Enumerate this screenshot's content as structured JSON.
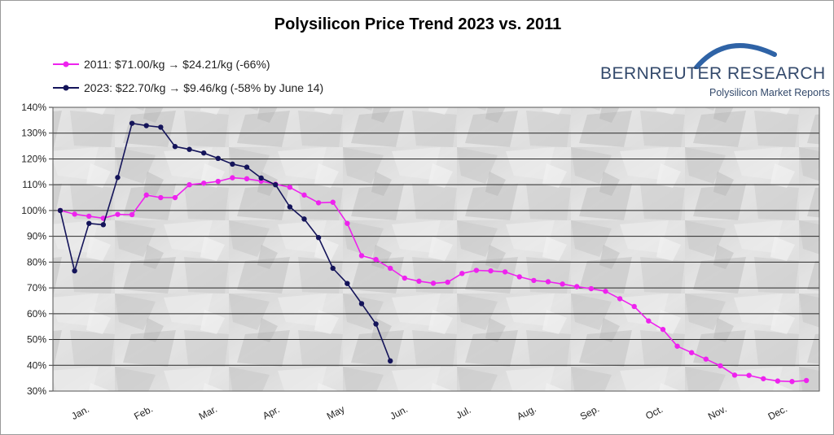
{
  "chart_data": {
    "type": "line",
    "title": "Polysilicon Price Trend 2023 vs. 2011",
    "xlabel": "",
    "ylabel": "",
    "x_unit": "week of year",
    "xlim": [
      1,
      52
    ],
    "ylim": [
      30,
      140
    ],
    "yticks": [
      30,
      40,
      50,
      60,
      70,
      80,
      90,
      100,
      110,
      120,
      130,
      140
    ],
    "ytick_labels": [
      "30%",
      "40%",
      "50%",
      "60%",
      "70%",
      "80%",
      "90%",
      "100%",
      "110%",
      "120%",
      "130%",
      "140%"
    ],
    "month_labels": [
      {
        "label": "Jan.",
        "x": 2.5
      },
      {
        "label": "Feb.",
        "x": 6.9
      },
      {
        "label": "Mar.",
        "x": 11.4
      },
      {
        "label": "Apr.",
        "x": 15.8
      },
      {
        "label": "May",
        "x": 20.3
      },
      {
        "label": "Jun.",
        "x": 24.7
      },
      {
        "label": "Jul.",
        "x": 29.2
      },
      {
        "label": "Aug.",
        "x": 33.6
      },
      {
        "label": "Sep.",
        "x": 38.0
      },
      {
        "label": "Oct.",
        "x": 42.5
      },
      {
        "label": "Nov.",
        "x": 46.9
      },
      {
        "label": "Dec.",
        "x": 51.1
      }
    ],
    "grid": true,
    "legend_position": "top-left",
    "series": [
      {
        "name": "2011: $71.00/kg → $24.21/kg (-66%)",
        "color": "#ee22ee",
        "points": [
          [
            1,
            100
          ],
          [
            2,
            98.6
          ],
          [
            3,
            97.8
          ],
          [
            4,
            97
          ],
          [
            5,
            98.5
          ],
          [
            6,
            98.4
          ],
          [
            7,
            106
          ],
          [
            8,
            105
          ],
          [
            9,
            105
          ],
          [
            10,
            110
          ],
          [
            11,
            110.6
          ],
          [
            12,
            111.3
          ],
          [
            13,
            112.7
          ],
          [
            14,
            112.3
          ],
          [
            15,
            111.4
          ],
          [
            16,
            110.2
          ],
          [
            17,
            109
          ],
          [
            18,
            106
          ],
          [
            19,
            103
          ],
          [
            20,
            103.2
          ],
          [
            21,
            95
          ],
          [
            22,
            82.5
          ],
          [
            23,
            81
          ],
          [
            24,
            77.6
          ],
          [
            25,
            73.8
          ],
          [
            26,
            72.6
          ],
          [
            27,
            71.8
          ],
          [
            28,
            72.2
          ],
          [
            29,
            75.6
          ],
          [
            30,
            76.8
          ],
          [
            31,
            76.6
          ],
          [
            32,
            76.2
          ],
          [
            33,
            74.3
          ],
          [
            34,
            72.9
          ],
          [
            35,
            72.4
          ],
          [
            36,
            71.5
          ],
          [
            37,
            70.5
          ],
          [
            38,
            69.7
          ],
          [
            39,
            68.7
          ],
          [
            40,
            65.8
          ],
          [
            41,
            62.8
          ],
          [
            42,
            57.2
          ],
          [
            43,
            53.9
          ],
          [
            44,
            47.4
          ],
          [
            45,
            44.9
          ],
          [
            46,
            42.4
          ],
          [
            47,
            39.8
          ],
          [
            48,
            36.2
          ],
          [
            49,
            36.1
          ],
          [
            50,
            34.8
          ],
          [
            51,
            33.9
          ],
          [
            52,
            33.7
          ],
          [
            53,
            34.1
          ]
        ]
      },
      {
        "name": "2023: $22.70/kg → $9.46/kg (-58% by June 14)",
        "color": "#14145a",
        "points": [
          [
            1,
            100
          ],
          [
            2,
            76.6
          ],
          [
            3,
            95
          ],
          [
            4,
            94.5
          ],
          [
            5,
            112.8
          ],
          [
            6,
            133.8
          ],
          [
            7,
            132.9
          ],
          [
            8,
            132.3
          ],
          [
            9,
            124.8
          ],
          [
            10,
            123.7
          ],
          [
            11,
            122.3
          ],
          [
            12,
            120.2
          ],
          [
            13,
            118
          ],
          [
            14,
            116.8
          ],
          [
            15,
            112.6
          ],
          [
            16,
            110
          ],
          [
            17,
            101.4
          ],
          [
            18,
            96.7
          ],
          [
            19,
            89.5
          ],
          [
            20,
            77.6
          ],
          [
            21,
            71.7
          ],
          [
            22,
            63.9
          ],
          [
            23,
            56
          ],
          [
            24,
            41.7
          ]
        ]
      }
    ]
  },
  "legend": {
    "items": [
      {
        "label": "2011: $71.00/kg → $24.21/kg (-66%)",
        "color": "#ee22ee"
      },
      {
        "label": "2023: $22.70/kg → $9.46/kg (-58% by June 14)",
        "color": "#14145a"
      }
    ]
  },
  "branding": {
    "name": "BERNREUTER RESEARCH",
    "subtitle": "Polysilicon Market Reports",
    "color": "#33496b",
    "arc_color": "#2f63a6"
  },
  "plot_background": "#d9d9d9",
  "background_image_icon": "polysilicon-chunks-texture"
}
